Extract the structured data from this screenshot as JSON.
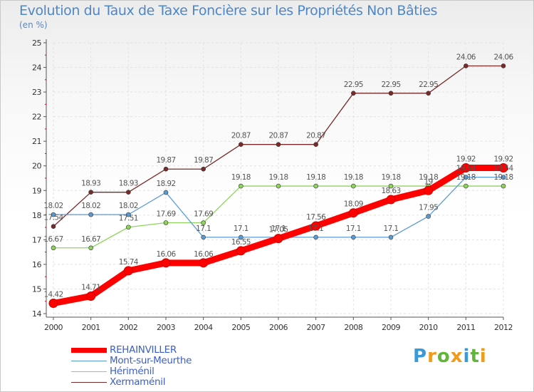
{
  "title": "Evolution du Taux de Taxe Foncière sur les Propriétés Non Bâties",
  "unit_label": "(en %)",
  "logo": {
    "letters": [
      "P",
      "r",
      "o",
      "x",
      "i",
      "t",
      "i"
    ],
    "colors": [
      "#3a9ad9",
      "#f09a1e",
      "#62b53a",
      "#f09a1e",
      "#3a9ad9",
      "#62b53a",
      "#f09a1e"
    ]
  },
  "chart_data": {
    "type": "line",
    "title": "Evolution du Taux de Taxe Foncière sur les Propriétés Non Bâties",
    "ylabel": "(en %)",
    "ylim": [
      14,
      25
    ],
    "yticks": [
      "14",
      "15",
      "16",
      "17",
      "18",
      "19",
      "20",
      "21",
      "22",
      "23",
      "24",
      "25"
    ],
    "x": [
      "2000",
      "2001",
      "2002",
      "2003",
      "2004",
      "2005",
      "2006",
      "2007",
      "2008",
      "2009",
      "2010",
      "2011",
      "2012"
    ],
    "grid": true,
    "legend_position": "bottom-left",
    "series": [
      {
        "name": "REHAINVILLER",
        "color": "#ff0000",
        "values": [
          14.42,
          14.71,
          15.74,
          16.06,
          16.06,
          16.55,
          17.05,
          17.56,
          18.09,
          18.63,
          19.0,
          19.92,
          19.92
        ],
        "labels": [
          "14.42",
          "14.71",
          "15.74",
          "16.06",
          "16.06",
          "16.55",
          "17.05",
          "17.56",
          "18.09",
          "18.63",
          "19",
          "19.92",
          "19.92"
        ]
      },
      {
        "name": "Mont-sur-Meurthe",
        "color": "#5b9bd5",
        "values": [
          18.02,
          18.02,
          18.02,
          18.92,
          17.1,
          17.1,
          17.1,
          17.1,
          17.1,
          17.1,
          17.95,
          19.54,
          19.54
        ],
        "labels": [
          "18.02",
          "18.02",
          "18.02",
          "18.92",
          "17.1",
          "17.1",
          "17.1",
          "17.1",
          "17.1",
          "17.1",
          "17.95",
          "19.54",
          "19.54"
        ]
      },
      {
        "name": "Hériménil",
        "color": "#8ed45c",
        "values": [
          16.67,
          16.67,
          17.51,
          17.69,
          17.69,
          19.18,
          19.18,
          19.18,
          19.18,
          19.18,
          19.18,
          19.18,
          19.18
        ],
        "labels": [
          "16.67",
          "16.67",
          "17.51",
          "17.69",
          "17.69",
          "19.18",
          "19.18",
          "19.18",
          "19.18",
          "19.18",
          "19.18",
          "19.18",
          "19.18"
        ]
      },
      {
        "name": "Xermaménil",
        "color": "#7b2a2a",
        "values": [
          17.54,
          18.93,
          18.93,
          19.87,
          19.87,
          20.87,
          20.87,
          20.87,
          22.95,
          22.95,
          22.95,
          24.06,
          24.06
        ],
        "labels": [
          "17.54",
          "18.93",
          "18.93",
          "19.87",
          "19.87",
          "20.87",
          "20.87",
          "20.87",
          "22.95",
          "22.95",
          "22.95",
          "24.06",
          "24.06"
        ]
      }
    ]
  }
}
